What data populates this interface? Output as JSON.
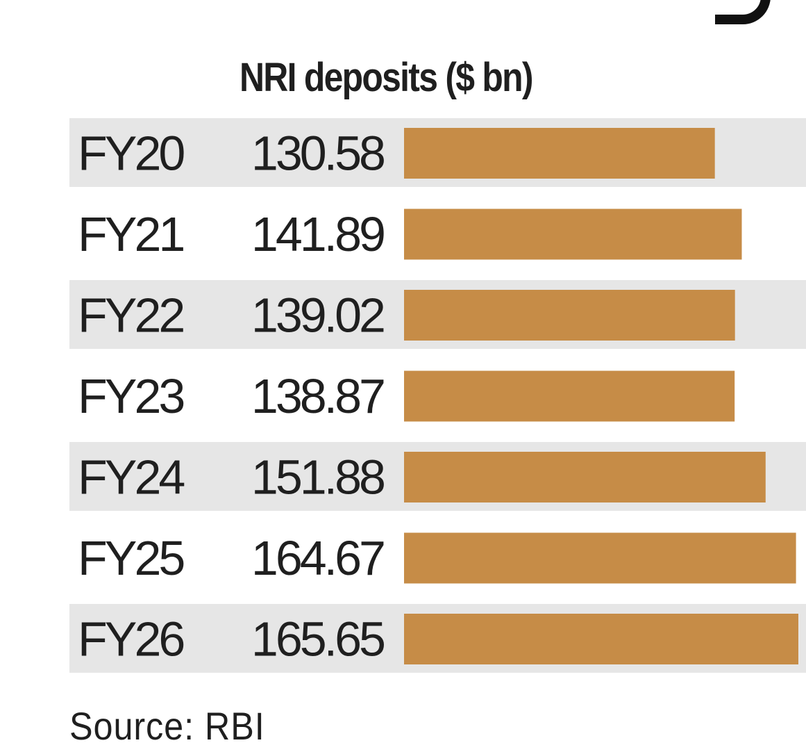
{
  "chart_data": {
    "type": "bar",
    "orientation": "horizontal",
    "title": "NRI deposits ($ bn)",
    "categories": [
      "FY20",
      "FY21",
      "FY22",
      "FY23",
      "FY24",
      "FY25",
      "FY26"
    ],
    "values": [
      130.58,
      141.89,
      139.02,
      138.87,
      151.88,
      164.67,
      165.65
    ],
    "value_labels": [
      "130.58",
      "141.89",
      "139.02",
      "138.87",
      "151.88",
      "164.67",
      "165.65"
    ],
    "xlabel": "",
    "ylabel": "",
    "xlim": [
      0,
      165.65
    ],
    "grid": false,
    "legend": "none",
    "bar_color": "#c68c47",
    "stripe_color": "#e6e6e6"
  },
  "source": "Source: RBI"
}
